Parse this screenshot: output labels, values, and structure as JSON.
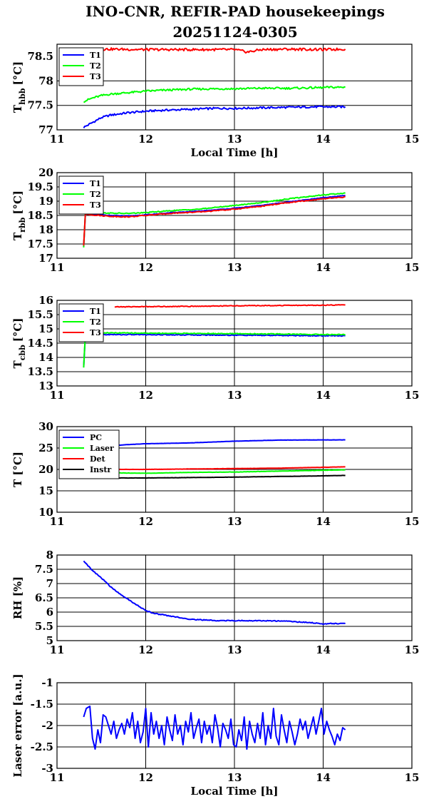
{
  "title_line1": "INO-CNR, REFIR-PAD housekeepings",
  "title_line2": "20251124-0305",
  "chart_data": [
    {
      "type": "line",
      "ylabel_main": "T",
      "ylabel_sub": "hbb",
      "ylabel_unit": "[°C]",
      "xlabel": "Local Time [h]",
      "xlim": [
        11,
        15
      ],
      "ylim": [
        77,
        78.75
      ],
      "xticks": [
        11,
        12,
        13,
        14,
        15
      ],
      "yticks": [
        77,
        77.5,
        78,
        78.5
      ],
      "ytick_labels": [
        "77",
        "77.5",
        "78",
        "78.5"
      ],
      "grid": true,
      "legend_position": "top-left",
      "series": [
        {
          "name": "T1",
          "color": "#0000ff",
          "noise": 0.02,
          "x": [
            11.3,
            11.4,
            11.5,
            11.6,
            11.8,
            12.0,
            12.2,
            12.5,
            12.8,
            13.0,
            13.3,
            13.6,
            13.9,
            14.1,
            14.25
          ],
          "y": [
            77.05,
            77.15,
            77.25,
            77.3,
            77.35,
            77.38,
            77.4,
            77.42,
            77.44,
            77.44,
            77.45,
            77.46,
            77.47,
            77.47,
            77.47
          ]
        },
        {
          "name": "T2",
          "color": "#00ff00",
          "noise": 0.02,
          "x": [
            11.3,
            11.4,
            11.5,
            11.6,
            11.8,
            12.0,
            12.2,
            12.5,
            12.8,
            13.0,
            13.3,
            13.6,
            13.9,
            14.1,
            14.25
          ],
          "y": [
            77.58,
            77.65,
            77.7,
            77.73,
            77.76,
            77.79,
            77.81,
            77.83,
            77.84,
            77.84,
            77.85,
            77.85,
            77.86,
            77.87,
            77.87
          ]
        },
        {
          "name": "T3",
          "color": "#ff0000",
          "noise": 0.025,
          "x": [
            11.3,
            11.6,
            12.0,
            12.5,
            13.0,
            13.15,
            13.3,
            13.6,
            14.0,
            14.25
          ],
          "y": [
            78.65,
            78.65,
            78.64,
            78.64,
            78.64,
            78.59,
            78.64,
            78.65,
            78.64,
            78.65
          ]
        }
      ]
    },
    {
      "type": "line",
      "ylabel_main": "T",
      "ylabel_sub": "rbb",
      "ylabel_unit": "[°C]",
      "xlabel": "",
      "xlim": [
        11,
        15
      ],
      "ylim": [
        17,
        20
      ],
      "xticks": [
        11,
        12,
        13,
        14,
        15
      ],
      "yticks": [
        17,
        17.5,
        18,
        18.5,
        19,
        19.5,
        20
      ],
      "ytick_labels": [
        "17",
        "17.5",
        "18",
        "18.5",
        "19",
        "19.5",
        "20"
      ],
      "grid": true,
      "legend_position": "top-left",
      "series": [
        {
          "name": "T1",
          "color": "#0000ff",
          "noise": 0.01,
          "x": [
            11.3,
            11.32,
            11.4,
            11.6,
            11.8,
            12.0,
            12.3,
            12.6,
            13.0,
            13.3,
            13.6,
            14.0,
            14.25
          ],
          "y": [
            17.4,
            18.55,
            18.55,
            18.5,
            18.48,
            18.52,
            18.6,
            18.65,
            18.75,
            18.85,
            18.97,
            19.12,
            19.2
          ]
        },
        {
          "name": "T2",
          "color": "#00ff00",
          "noise": 0.015,
          "x": [
            11.3,
            11.32,
            11.4,
            11.6,
            11.8,
            12.0,
            12.3,
            12.6,
            13.0,
            13.3,
            13.6,
            14.0,
            14.25
          ],
          "y": [
            17.38,
            18.6,
            18.6,
            18.58,
            18.57,
            18.6,
            18.67,
            18.72,
            18.85,
            18.95,
            19.08,
            19.22,
            19.28
          ]
        },
        {
          "name": "T3",
          "color": "#ff0000",
          "noise": 0.015,
          "x": [
            11.3,
            11.32,
            11.4,
            11.6,
            11.8,
            12.0,
            12.3,
            12.6,
            13.0,
            13.3,
            13.6,
            14.0,
            14.25
          ],
          "y": [
            17.45,
            18.55,
            18.52,
            18.47,
            18.45,
            18.5,
            18.58,
            18.62,
            18.72,
            18.82,
            18.95,
            19.08,
            19.15
          ]
        }
      ]
    },
    {
      "type": "line",
      "ylabel_main": "T",
      "ylabel_sub": "cbb",
      "ylabel_unit": "[°C]",
      "xlabel": "",
      "xlim": [
        11,
        15
      ],
      "ylim": [
        13,
        16
      ],
      "xticks": [
        11,
        12,
        13,
        14,
        15
      ],
      "yticks": [
        13,
        13.5,
        14,
        14.5,
        15,
        15.5,
        16
      ],
      "ytick_labels": [
        "13",
        "13.5",
        "14",
        "14.5",
        "15",
        "15.5",
        "16"
      ],
      "grid": true,
      "legend_position": "top-left",
      "series": [
        {
          "name": "T1",
          "color": "#0000ff",
          "noise": 0.015,
          "x": [
            11.3,
            11.32,
            11.4,
            11.6,
            12.0,
            12.5,
            13.0,
            13.5,
            14.0,
            14.25
          ],
          "y": [
            13.65,
            14.75,
            14.8,
            14.8,
            14.8,
            14.79,
            14.78,
            14.77,
            14.76,
            14.76
          ]
        },
        {
          "name": "T2",
          "color": "#00ff00",
          "noise": 0.015,
          "x": [
            11.3,
            11.32,
            11.4,
            11.6,
            12.0,
            12.5,
            13.0,
            13.5,
            14.0,
            14.25
          ],
          "y": [
            13.65,
            14.82,
            14.86,
            14.86,
            14.85,
            14.84,
            14.83,
            14.82,
            14.8,
            14.8
          ]
        },
        {
          "name": "T3",
          "color": "#ff0000",
          "noise": 0.012,
          "x": [
            11.65,
            12.0,
            12.5,
            13.0,
            13.5,
            14.0,
            14.25
          ],
          "y": [
            15.77,
            15.78,
            15.79,
            15.81,
            15.82,
            15.83,
            15.84
          ]
        }
      ]
    },
    {
      "type": "line",
      "ylabel_main": "T [°C]",
      "ylabel_sub": "",
      "ylabel_unit": "",
      "xlabel": "",
      "xlim": [
        11,
        15
      ],
      "ylim": [
        10,
        30
      ],
      "xticks": [
        11,
        12,
        13,
        14,
        15
      ],
      "yticks": [
        10,
        15,
        20,
        25,
        30
      ],
      "ytick_labels": [
        "10",
        "15",
        "20",
        "25",
        "30"
      ],
      "grid": true,
      "legend_position": "top-left",
      "series": [
        {
          "name": "PC",
          "color": "#0000ff",
          "noise": 0.02,
          "x": [
            11.65,
            11.8,
            12.0,
            12.5,
            13.0,
            13.5,
            14.0,
            14.25
          ],
          "y": [
            25.6,
            25.8,
            26.0,
            26.2,
            26.6,
            26.85,
            26.9,
            26.9
          ]
        },
        {
          "name": "Laser",
          "color": "#00ff00",
          "noise": 0.03,
          "x": [
            11.65,
            12.0,
            12.5,
            13.0,
            13.5,
            14.0,
            14.25
          ],
          "y": [
            19.2,
            19.1,
            19.3,
            19.4,
            19.6,
            19.8,
            19.9
          ]
        },
        {
          "name": "Det",
          "color": "#ff0000",
          "noise": 0.02,
          "x": [
            11.65,
            12.0,
            12.5,
            13.0,
            13.5,
            14.0,
            14.25
          ],
          "y": [
            20.0,
            20.0,
            20.1,
            20.2,
            20.3,
            20.5,
            20.6
          ]
        },
        {
          "name": "Instr",
          "color": "#000000",
          "noise": 0.02,
          "x": [
            11.65,
            12.0,
            12.5,
            13.0,
            13.5,
            14.0,
            14.25
          ],
          "y": [
            18.0,
            18.0,
            18.1,
            18.2,
            18.35,
            18.5,
            18.6
          ]
        }
      ]
    },
    {
      "type": "line",
      "ylabel_main": "RH [%]",
      "ylabel_sub": "",
      "ylabel_unit": "",
      "xlabel": "",
      "xlim": [
        11,
        15
      ],
      "ylim": [
        5,
        8
      ],
      "xticks": [
        11,
        12,
        13,
        14,
        15
      ],
      "yticks": [
        5,
        5.5,
        6,
        6.5,
        7,
        7.5,
        8
      ],
      "ytick_labels": [
        "5",
        "5.5",
        "6",
        "6.5",
        "7",
        "7.5",
        "8"
      ],
      "grid": true,
      "legend_position": "none",
      "series": [
        {
          "name": "",
          "color": "#0000ff",
          "noise": 0.015,
          "x": [
            11.3,
            11.4,
            11.5,
            11.6,
            11.7,
            11.8,
            11.9,
            12.0,
            12.1,
            12.3,
            12.5,
            12.8,
            13.0,
            13.3,
            13.6,
            13.9,
            14.0,
            14.1,
            14.25
          ],
          "y": [
            7.8,
            7.45,
            7.2,
            6.9,
            6.65,
            6.45,
            6.25,
            6.05,
            5.95,
            5.85,
            5.75,
            5.7,
            5.7,
            5.7,
            5.68,
            5.62,
            5.58,
            5.6,
            5.6
          ]
        }
      ]
    },
    {
      "type": "line",
      "ylabel_main": "Laser error [a.u.]",
      "ylabel_sub": "",
      "ylabel_unit": "",
      "xlabel": "Local Time [h]",
      "xlim": [
        11,
        15
      ],
      "ylim": [
        -3,
        -1
      ],
      "xticks": [
        11,
        12,
        13,
        14,
        15
      ],
      "yticks": [
        -3,
        -2.5,
        -2,
        -1.5,
        -1
      ],
      "ytick_labels": [
        "-3",
        "-2.5",
        "-2",
        "-1.5",
        "-1"
      ],
      "grid": true,
      "legend_position": "none",
      "series": [
        {
          "name": "",
          "color": "#0000ff",
          "noise": 0,
          "x": [
            11.3,
            11.33,
            11.37,
            11.4,
            11.43,
            11.46,
            11.49,
            11.52,
            11.55,
            11.58,
            11.61,
            11.64,
            11.67,
            11.7,
            11.73,
            11.76,
            11.79,
            11.82,
            11.85,
            11.88,
            11.91,
            11.94,
            11.97,
            12.0,
            12.03,
            12.06,
            12.09,
            12.12,
            12.15,
            12.18,
            12.21,
            12.24,
            12.27,
            12.3,
            12.33,
            12.36,
            12.39,
            12.42,
            12.45,
            12.48,
            12.51,
            12.54,
            12.57,
            12.6,
            12.63,
            12.66,
            12.69,
            12.72,
            12.75,
            12.78,
            12.81,
            12.84,
            12.87,
            12.9,
            12.93,
            12.96,
            12.99,
            13.02,
            13.05,
            13.08,
            13.11,
            13.14,
            13.17,
            13.2,
            13.23,
            13.26,
            13.29,
            13.32,
            13.35,
            13.38,
            13.41,
            13.44,
            13.47,
            13.5,
            13.53,
            13.56,
            13.59,
            13.62,
            13.65,
            13.68,
            13.71,
            13.74,
            13.77,
            13.8,
            13.83,
            13.86,
            13.89,
            13.92,
            13.95,
            13.98,
            14.01,
            14.04,
            14.07,
            14.1,
            14.13,
            14.16,
            14.19,
            14.22,
            14.25
          ],
          "y": [
            -1.8,
            -1.6,
            -1.55,
            -2.3,
            -2.55,
            -2.1,
            -2.4,
            -1.75,
            -1.8,
            -2.0,
            -2.2,
            -1.9,
            -2.3,
            -2.1,
            -1.95,
            -2.2,
            -1.85,
            -2.05,
            -1.7,
            -2.3,
            -1.9,
            -2.4,
            -2.15,
            -1.6,
            -2.5,
            -1.7,
            -2.2,
            -1.9,
            -2.3,
            -2.0,
            -2.45,
            -1.8,
            -2.1,
            -2.35,
            -1.75,
            -2.2,
            -2.0,
            -2.45,
            -1.9,
            -2.15,
            -1.7,
            -2.3,
            -2.05,
            -1.85,
            -2.4,
            -1.9,
            -2.2,
            -2.0,
            -2.4,
            -1.75,
            -2.05,
            -2.5,
            -1.95,
            -2.1,
            -2.3,
            -1.85,
            -2.45,
            -2.5,
            -2.1,
            -2.35,
            -1.8,
            -2.55,
            -1.9,
            -2.2,
            -2.4,
            -1.95,
            -2.3,
            -1.7,
            -2.45,
            -2.0,
            -2.3,
            -1.6,
            -2.25,
            -2.45,
            -1.75,
            -2.1,
            -2.4,
            -1.9,
            -2.15,
            -2.45,
            -2.2,
            -1.85,
            -2.1,
            -1.9,
            -2.3,
            -2.05,
            -1.8,
            -2.2,
            -1.9,
            -1.6,
            -2.2,
            -1.9,
            -2.1,
            -2.25,
            -2.45,
            -2.2,
            -2.35,
            -2.05,
            -2.1
          ]
        }
      ]
    }
  ]
}
